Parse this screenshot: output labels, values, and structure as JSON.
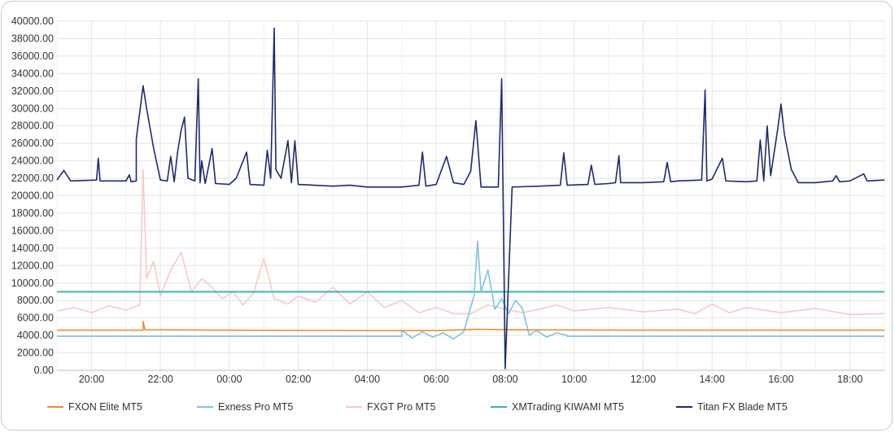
{
  "chart_data": {
    "type": "line",
    "title": "",
    "xlabel": "",
    "ylabel": "",
    "ylim": [
      0,
      40000
    ],
    "y_ticks": [
      "0.00",
      "2000.00",
      "4000.00",
      "6000.00",
      "8000.00",
      "10000.00",
      "12000.00",
      "14000.00",
      "16000.00",
      "18000.00",
      "20000.00",
      "22000.00",
      "24000.00",
      "26000.00",
      "28000.00",
      "30000.00",
      "32000.00",
      "34000.00",
      "36000.00",
      "38000.00",
      "40000.00"
    ],
    "x_ticks": [
      "20:00",
      "22:00",
      "00:00",
      "02:00",
      "04:00",
      "06:00",
      "08:00",
      "10:00",
      "12:00",
      "14:00",
      "16:00",
      "18:00"
    ],
    "x_range_hours": [
      19.0,
      43.0
    ],
    "grid": true,
    "legend_position": "bottom",
    "series": [
      {
        "name": "FXON Elite MT5",
        "color": "#e8902a",
        "points": [
          [
            19.0,
            4600
          ],
          [
            21.5,
            4600
          ],
          [
            21.5,
            5600
          ],
          [
            21.55,
            4650
          ],
          [
            24,
            4600
          ],
          [
            28,
            4550
          ],
          [
            30,
            4550
          ],
          [
            31.2,
            4700
          ],
          [
            32,
            4650
          ],
          [
            36,
            4600
          ],
          [
            40,
            4600
          ],
          [
            43,
            4600
          ]
        ]
      },
      {
        "name": "Exness Pro MT5",
        "color": "#7ec3e4",
        "points": [
          [
            19.0,
            3900
          ],
          [
            29.0,
            3900
          ],
          [
            29.0,
            4600
          ],
          [
            29.3,
            3700
          ],
          [
            29.6,
            4400
          ],
          [
            29.9,
            3800
          ],
          [
            30.2,
            4300
          ],
          [
            30.5,
            3600
          ],
          [
            30.8,
            4400
          ],
          [
            31.1,
            8600
          ],
          [
            31.2,
            14800
          ],
          [
            31.3,
            9000
          ],
          [
            31.5,
            11500
          ],
          [
            31.7,
            7000
          ],
          [
            31.9,
            8200
          ],
          [
            32.1,
            6500
          ],
          [
            32.3,
            8000
          ],
          [
            32.5,
            7100
          ],
          [
            32.7,
            4000
          ],
          [
            32.9,
            4600
          ],
          [
            33.2,
            3800
          ],
          [
            33.5,
            4300
          ],
          [
            33.8,
            4000
          ],
          [
            33.8,
            3900
          ],
          [
            43,
            3900
          ]
        ]
      },
      {
        "name": "FXGT Pro MT5",
        "color": "#f7c9c9",
        "points": [
          [
            19.0,
            6800
          ],
          [
            19.5,
            7200
          ],
          [
            20.0,
            6600
          ],
          [
            20.5,
            7400
          ],
          [
            21.0,
            6900
          ],
          [
            21.4,
            7500
          ],
          [
            21.5,
            23000
          ],
          [
            21.6,
            10500
          ],
          [
            21.8,
            12500
          ],
          [
            22.0,
            8500
          ],
          [
            22.3,
            11500
          ],
          [
            22.6,
            13500
          ],
          [
            22.9,
            9000
          ],
          [
            23.2,
            10500
          ],
          [
            23.5,
            9500
          ],
          [
            23.8,
            8200
          ],
          [
            24.1,
            9000
          ],
          [
            24.4,
            7500
          ],
          [
            24.7,
            8800
          ],
          [
            25.0,
            12800
          ],
          [
            25.3,
            8200
          ],
          [
            25.7,
            7600
          ],
          [
            26.0,
            8500
          ],
          [
            26.5,
            7800
          ],
          [
            27.0,
            9500
          ],
          [
            27.5,
            7600
          ],
          [
            28.0,
            9000
          ],
          [
            28.5,
            7200
          ],
          [
            29.0,
            8000
          ],
          [
            29.5,
            6600
          ],
          [
            30.0,
            7200
          ],
          [
            30.5,
            6500
          ],
          [
            31.0,
            6500
          ],
          [
            31.5,
            7500
          ],
          [
            32.0,
            7000
          ],
          [
            32.5,
            6600
          ],
          [
            33.0,
            7000
          ],
          [
            33.5,
            7500
          ],
          [
            34.0,
            6800
          ],
          [
            35.0,
            7200
          ],
          [
            36.0,
            6700
          ],
          [
            37.0,
            7000
          ],
          [
            37.5,
            6500
          ],
          [
            38.0,
            7600
          ],
          [
            38.5,
            6600
          ],
          [
            39.0,
            7200
          ],
          [
            40.0,
            6600
          ],
          [
            41.0,
            7100
          ],
          [
            42.0,
            6400
          ],
          [
            43.0,
            6500
          ]
        ]
      },
      {
        "name": "XMTrading KIWAMI MT5",
        "color": "#3fb6b2",
        "points": [
          [
            19.0,
            9000
          ],
          [
            43.0,
            9000
          ]
        ]
      },
      {
        "name": "Titan FX Blade MT5",
        "color": "#1f2a6e",
        "points": [
          [
            19.0,
            21800
          ],
          [
            19.2,
            22900
          ],
          [
            19.4,
            21700
          ],
          [
            20.15,
            21800
          ],
          [
            20.2,
            24300
          ],
          [
            20.25,
            21700
          ],
          [
            21.0,
            21700
          ],
          [
            21.1,
            22400
          ],
          [
            21.15,
            21600
          ],
          [
            21.3,
            21700
          ],
          [
            21.3,
            26500
          ],
          [
            21.5,
            32600
          ],
          [
            21.6,
            30000
          ],
          [
            21.8,
            25500
          ],
          [
            22.0,
            21800
          ],
          [
            22.2,
            21700
          ],
          [
            22.3,
            24500
          ],
          [
            22.4,
            21600
          ],
          [
            22.5,
            25000
          ],
          [
            22.6,
            27500
          ],
          [
            22.7,
            29000
          ],
          [
            22.8,
            22000
          ],
          [
            23.0,
            21700
          ],
          [
            23.1,
            33400
          ],
          [
            23.15,
            21500
          ],
          [
            23.2,
            24000
          ],
          [
            23.3,
            21400
          ],
          [
            23.5,
            25400
          ],
          [
            23.6,
            21400
          ],
          [
            24.0,
            21300
          ],
          [
            24.2,
            22000
          ],
          [
            24.5,
            25000
          ],
          [
            24.6,
            21300
          ],
          [
            25.0,
            21200
          ],
          [
            25.1,
            25200
          ],
          [
            25.2,
            22000
          ],
          [
            25.3,
            39200
          ],
          [
            25.35,
            23000
          ],
          [
            25.5,
            22000
          ],
          [
            25.7,
            26300
          ],
          [
            25.8,
            21500
          ],
          [
            25.9,
            26300
          ],
          [
            26.0,
            21300
          ],
          [
            27.0,
            21100
          ],
          [
            27.5,
            21200
          ],
          [
            28.0,
            21000
          ],
          [
            29.0,
            21000
          ],
          [
            29.5,
            21200
          ],
          [
            29.6,
            25000
          ],
          [
            29.7,
            21100
          ],
          [
            30.0,
            21300
          ],
          [
            30.3,
            24500
          ],
          [
            30.5,
            21500
          ],
          [
            30.8,
            21300
          ],
          [
            31.0,
            22800
          ],
          [
            31.15,
            28600
          ],
          [
            31.3,
            21000
          ],
          [
            31.8,
            21000
          ],
          [
            31.9,
            33400
          ],
          [
            32.0,
            200
          ],
          [
            32.2,
            21000
          ],
          [
            33.0,
            21100
          ],
          [
            33.6,
            21200
          ],
          [
            33.7,
            24900
          ],
          [
            33.8,
            21200
          ],
          [
            34.4,
            21300
          ],
          [
            34.5,
            23500
          ],
          [
            34.6,
            21300
          ],
          [
            35.0,
            21400
          ],
          [
            35.2,
            21500
          ],
          [
            35.3,
            24600
          ],
          [
            35.35,
            21500
          ],
          [
            36.0,
            21500
          ],
          [
            36.6,
            21600
          ],
          [
            36.7,
            23800
          ],
          [
            36.8,
            21600
          ],
          [
            37.0,
            21700
          ],
          [
            37.7,
            21800
          ],
          [
            37.8,
            32100
          ],
          [
            37.85,
            21700
          ],
          [
            38.0,
            21900
          ],
          [
            38.3,
            24300
          ],
          [
            38.4,
            21700
          ],
          [
            39.0,
            21600
          ],
          [
            39.3,
            21700
          ],
          [
            39.4,
            26400
          ],
          [
            39.5,
            21700
          ],
          [
            39.6,
            28000
          ],
          [
            39.7,
            22300
          ],
          [
            39.9,
            27500
          ],
          [
            40.0,
            30500
          ],
          [
            40.1,
            27000
          ],
          [
            40.3,
            23000
          ],
          [
            40.5,
            21500
          ],
          [
            41.0,
            21500
          ],
          [
            41.5,
            21700
          ],
          [
            41.6,
            22300
          ],
          [
            41.7,
            21600
          ],
          [
            42.0,
            21700
          ],
          [
            42.4,
            22500
          ],
          [
            42.5,
            21700
          ],
          [
            43.0,
            21800
          ]
        ]
      }
    ]
  }
}
